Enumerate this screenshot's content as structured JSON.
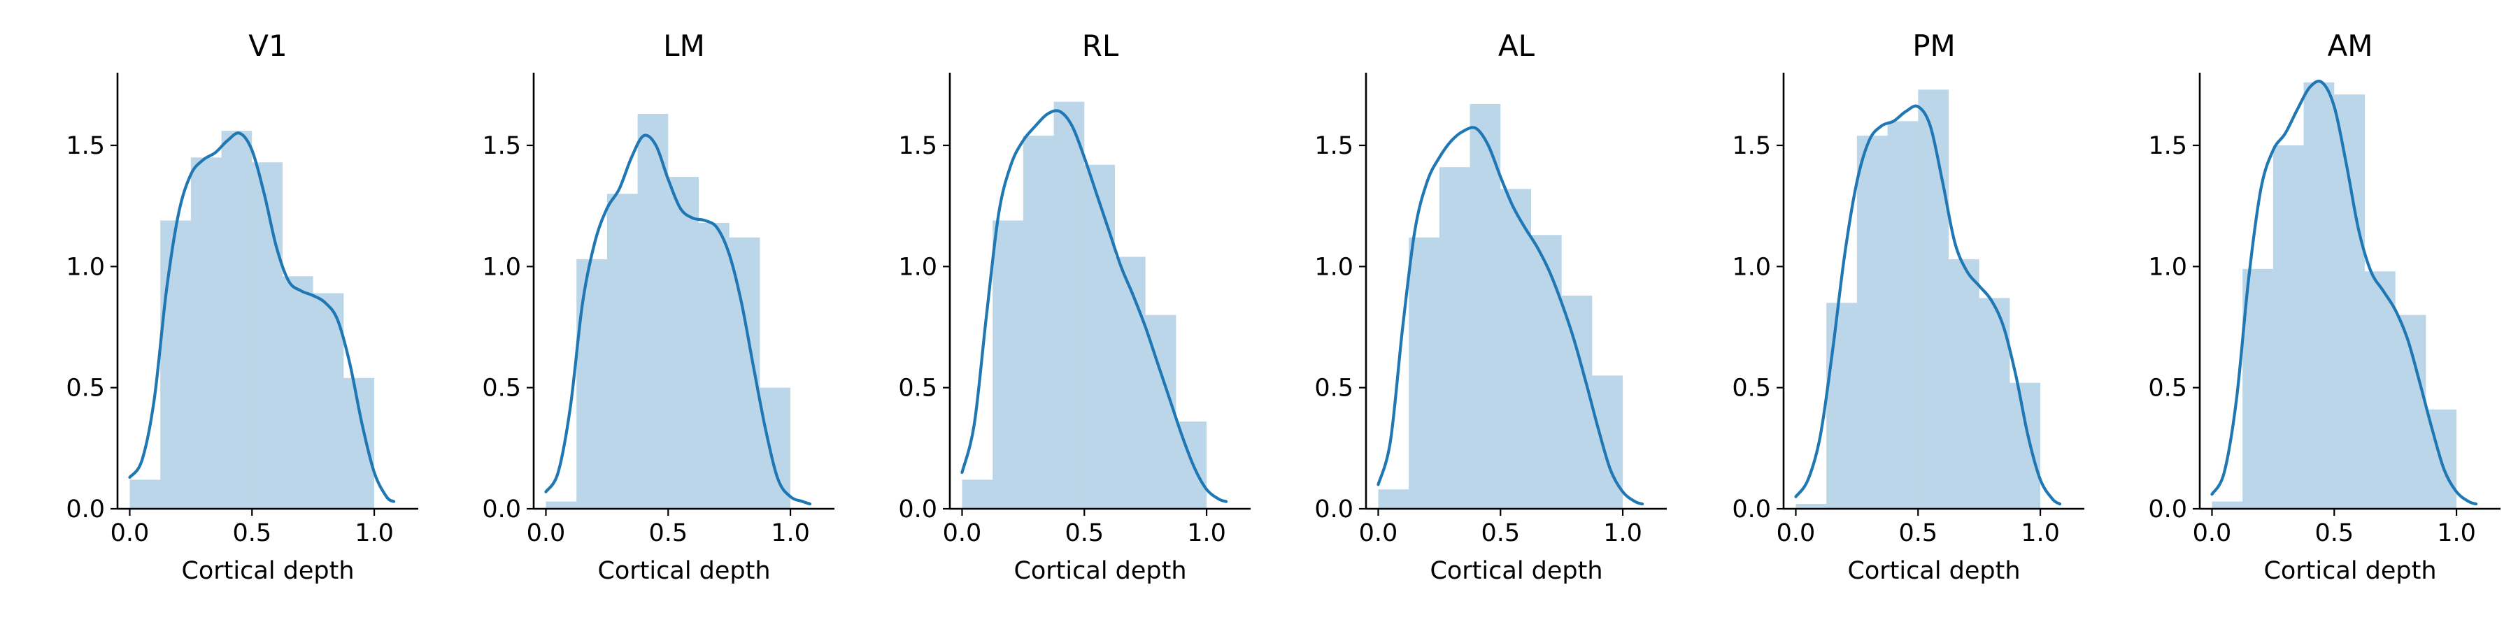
{
  "figure": {
    "colors": {
      "bar": "#1f77b4",
      "bar_opacity": 0.3,
      "kde_line": "#1f77b4",
      "axes": "#000000"
    }
  },
  "chart_data": [
    {
      "type": "bar",
      "title": "V1",
      "xlabel": "Cortical depth",
      "ylabel": "",
      "xlim": [
        -0.05,
        1.18
      ],
      "ylim": [
        0,
        1.8
      ],
      "xticks": [
        0.0,
        0.5,
        1.0
      ],
      "xtick_labels": [
        "0.0",
        "0.5",
        "1.0"
      ],
      "yticks": [
        0.0,
        0.5,
        1.0,
        1.5
      ],
      "ytick_labels": [
        "0.0",
        "0.5",
        "1.0",
        "1.5"
      ],
      "grid": false,
      "histogram": {
        "bin_edges": [
          0.0,
          0.125,
          0.25,
          0.375,
          0.5,
          0.625,
          0.75,
          0.875,
          1.0
        ],
        "values": [
          0.12,
          1.19,
          1.45,
          1.56,
          1.43,
          0.96,
          0.89,
          0.54
        ]
      },
      "kde": {
        "x": [
          0.0,
          0.05,
          0.1,
          0.15,
          0.2,
          0.25,
          0.3,
          0.35,
          0.4,
          0.45,
          0.5,
          0.55,
          0.6,
          0.65,
          0.7,
          0.75,
          0.8,
          0.85,
          0.9,
          0.95,
          1.0,
          1.05,
          1.08
        ],
        "y": [
          0.13,
          0.2,
          0.45,
          0.9,
          1.22,
          1.38,
          1.44,
          1.47,
          1.52,
          1.55,
          1.48,
          1.3,
          1.08,
          0.94,
          0.9,
          0.88,
          0.85,
          0.78,
          0.6,
          0.35,
          0.15,
          0.05,
          0.03
        ]
      }
    },
    {
      "type": "bar",
      "title": "LM",
      "xlabel": "Cortical depth",
      "ylabel": "",
      "xlim": [
        -0.05,
        1.18
      ],
      "ylim": [
        0,
        1.8
      ],
      "xticks": [
        0.0,
        0.5,
        1.0
      ],
      "xtick_labels": [
        "0.0",
        "0.5",
        "1.0"
      ],
      "yticks": [
        0.0,
        0.5,
        1.0,
        1.5
      ],
      "ytick_labels": [
        "0.0",
        "0.5",
        "1.0",
        "1.5"
      ],
      "grid": false,
      "histogram": {
        "bin_edges": [
          0.0,
          0.125,
          0.25,
          0.375,
          0.5,
          0.625,
          0.75,
          0.875,
          1.0
        ],
        "values": [
          0.03,
          1.03,
          1.3,
          1.63,
          1.37,
          1.18,
          1.12,
          0.5
        ]
      },
      "kde": {
        "x": [
          0.0,
          0.05,
          0.1,
          0.15,
          0.2,
          0.25,
          0.3,
          0.35,
          0.4,
          0.45,
          0.5,
          0.55,
          0.6,
          0.65,
          0.7,
          0.75,
          0.8,
          0.85,
          0.9,
          0.95,
          1.0,
          1.05,
          1.08
        ],
        "y": [
          0.07,
          0.15,
          0.42,
          0.85,
          1.1,
          1.24,
          1.32,
          1.45,
          1.54,
          1.5,
          1.36,
          1.24,
          1.2,
          1.19,
          1.16,
          1.05,
          0.85,
          0.58,
          0.32,
          0.12,
          0.05,
          0.03,
          0.02
        ]
      }
    },
    {
      "type": "bar",
      "title": "RL",
      "xlabel": "Cortical depth",
      "ylabel": "",
      "xlim": [
        -0.05,
        1.18
      ],
      "ylim": [
        0,
        1.8
      ],
      "xticks": [
        0.0,
        0.5,
        1.0
      ],
      "xtick_labels": [
        "0.0",
        "0.5",
        "1.0"
      ],
      "yticks": [
        0.0,
        0.5,
        1.0,
        1.5
      ],
      "ytick_labels": [
        "0.0",
        "0.5",
        "1.0",
        "1.5"
      ],
      "grid": false,
      "histogram": {
        "bin_edges": [
          0.0,
          0.125,
          0.25,
          0.375,
          0.5,
          0.625,
          0.75,
          0.875,
          1.0
        ],
        "values": [
          0.12,
          1.19,
          1.54,
          1.68,
          1.42,
          1.04,
          0.8,
          0.36
        ]
      },
      "kde": {
        "x": [
          0.0,
          0.05,
          0.1,
          0.15,
          0.2,
          0.25,
          0.3,
          0.35,
          0.4,
          0.45,
          0.5,
          0.55,
          0.6,
          0.65,
          0.7,
          0.75,
          0.8,
          0.85,
          0.9,
          0.95,
          1.0,
          1.05,
          1.08
        ],
        "y": [
          0.15,
          0.35,
          0.8,
          1.22,
          1.42,
          1.52,
          1.58,
          1.63,
          1.64,
          1.58,
          1.45,
          1.3,
          1.15,
          1.0,
          0.88,
          0.75,
          0.6,
          0.45,
          0.3,
          0.17,
          0.08,
          0.04,
          0.03
        ]
      }
    },
    {
      "type": "bar",
      "title": "AL",
      "xlabel": "Cortical depth",
      "ylabel": "",
      "xlim": [
        -0.05,
        1.18
      ],
      "ylim": [
        0,
        1.8
      ],
      "xticks": [
        0.0,
        0.5,
        1.0
      ],
      "xtick_labels": [
        "0.0",
        "0.5",
        "1.0"
      ],
      "yticks": [
        0.0,
        0.5,
        1.0,
        1.5
      ],
      "ytick_labels": [
        "0.0",
        "0.5",
        "1.0",
        "1.5"
      ],
      "grid": false,
      "histogram": {
        "bin_edges": [
          0.0,
          0.125,
          0.25,
          0.375,
          0.5,
          0.625,
          0.75,
          0.875,
          1.0
        ],
        "values": [
          0.08,
          1.12,
          1.41,
          1.67,
          1.32,
          1.13,
          0.88,
          0.55
        ]
      },
      "kde": {
        "x": [
          0.0,
          0.05,
          0.1,
          0.15,
          0.2,
          0.25,
          0.3,
          0.35,
          0.4,
          0.45,
          0.5,
          0.55,
          0.6,
          0.65,
          0.7,
          0.75,
          0.8,
          0.85,
          0.9,
          0.95,
          1.0,
          1.05,
          1.08
        ],
        "y": [
          0.1,
          0.28,
          0.75,
          1.15,
          1.35,
          1.45,
          1.52,
          1.56,
          1.57,
          1.5,
          1.37,
          1.25,
          1.16,
          1.08,
          0.98,
          0.85,
          0.7,
          0.52,
          0.33,
          0.16,
          0.07,
          0.03,
          0.02
        ]
      }
    },
    {
      "type": "bar",
      "title": "PM",
      "xlabel": "Cortical depth",
      "ylabel": "",
      "xlim": [
        -0.05,
        1.18
      ],
      "ylim": [
        0,
        1.8
      ],
      "xticks": [
        0.0,
        0.5,
        1.0
      ],
      "xtick_labels": [
        "0.0",
        "0.5",
        "1.0"
      ],
      "yticks": [
        0.0,
        0.5,
        1.0,
        1.5
      ],
      "ytick_labels": [
        "0.0",
        "0.5",
        "1.0",
        "1.5"
      ],
      "grid": false,
      "histogram": {
        "bin_edges": [
          0.0,
          0.125,
          0.25,
          0.375,
          0.5,
          0.625,
          0.75,
          0.875,
          1.0
        ],
        "values": [
          0.02,
          0.85,
          1.54,
          1.6,
          1.73,
          1.03,
          0.87,
          0.52
        ]
      },
      "kde": {
        "x": [
          0.0,
          0.05,
          0.1,
          0.15,
          0.2,
          0.25,
          0.3,
          0.35,
          0.4,
          0.45,
          0.5,
          0.55,
          0.6,
          0.65,
          0.7,
          0.75,
          0.8,
          0.85,
          0.9,
          0.95,
          1.0,
          1.05,
          1.08
        ],
        "y": [
          0.05,
          0.12,
          0.3,
          0.65,
          1.05,
          1.35,
          1.52,
          1.58,
          1.6,
          1.64,
          1.66,
          1.58,
          1.35,
          1.1,
          0.98,
          0.92,
          0.86,
          0.75,
          0.55,
          0.3,
          0.12,
          0.04,
          0.02
        ]
      }
    },
    {
      "type": "bar",
      "title": "AM",
      "xlabel": "Cortical depth",
      "ylabel": "",
      "xlim": [
        -0.05,
        1.18
      ],
      "ylim": [
        0,
        1.8
      ],
      "xticks": [
        0.0,
        0.5,
        1.0
      ],
      "xtick_labels": [
        "0.0",
        "0.5",
        "1.0"
      ],
      "yticks": [
        0.0,
        0.5,
        1.0,
        1.5
      ],
      "ytick_labels": [
        "0.0",
        "0.5",
        "1.0",
        "1.5"
      ],
      "grid": false,
      "histogram": {
        "bin_edges": [
          0.0,
          0.125,
          0.25,
          0.375,
          0.5,
          0.625,
          0.75,
          0.875,
          1.0
        ],
        "values": [
          0.03,
          0.99,
          1.5,
          1.76,
          1.71,
          0.98,
          0.8,
          0.41
        ]
      },
      "kde": {
        "x": [
          0.0,
          0.05,
          0.1,
          0.15,
          0.2,
          0.25,
          0.3,
          0.35,
          0.4,
          0.45,
          0.5,
          0.55,
          0.6,
          0.65,
          0.7,
          0.75,
          0.8,
          0.85,
          0.9,
          0.95,
          1.0,
          1.05,
          1.08
        ],
        "y": [
          0.06,
          0.15,
          0.45,
          0.95,
          1.32,
          1.48,
          1.55,
          1.65,
          1.74,
          1.76,
          1.66,
          1.42,
          1.15,
          0.98,
          0.9,
          0.82,
          0.7,
          0.52,
          0.33,
          0.16,
          0.07,
          0.03,
          0.02
        ]
      }
    }
  ]
}
